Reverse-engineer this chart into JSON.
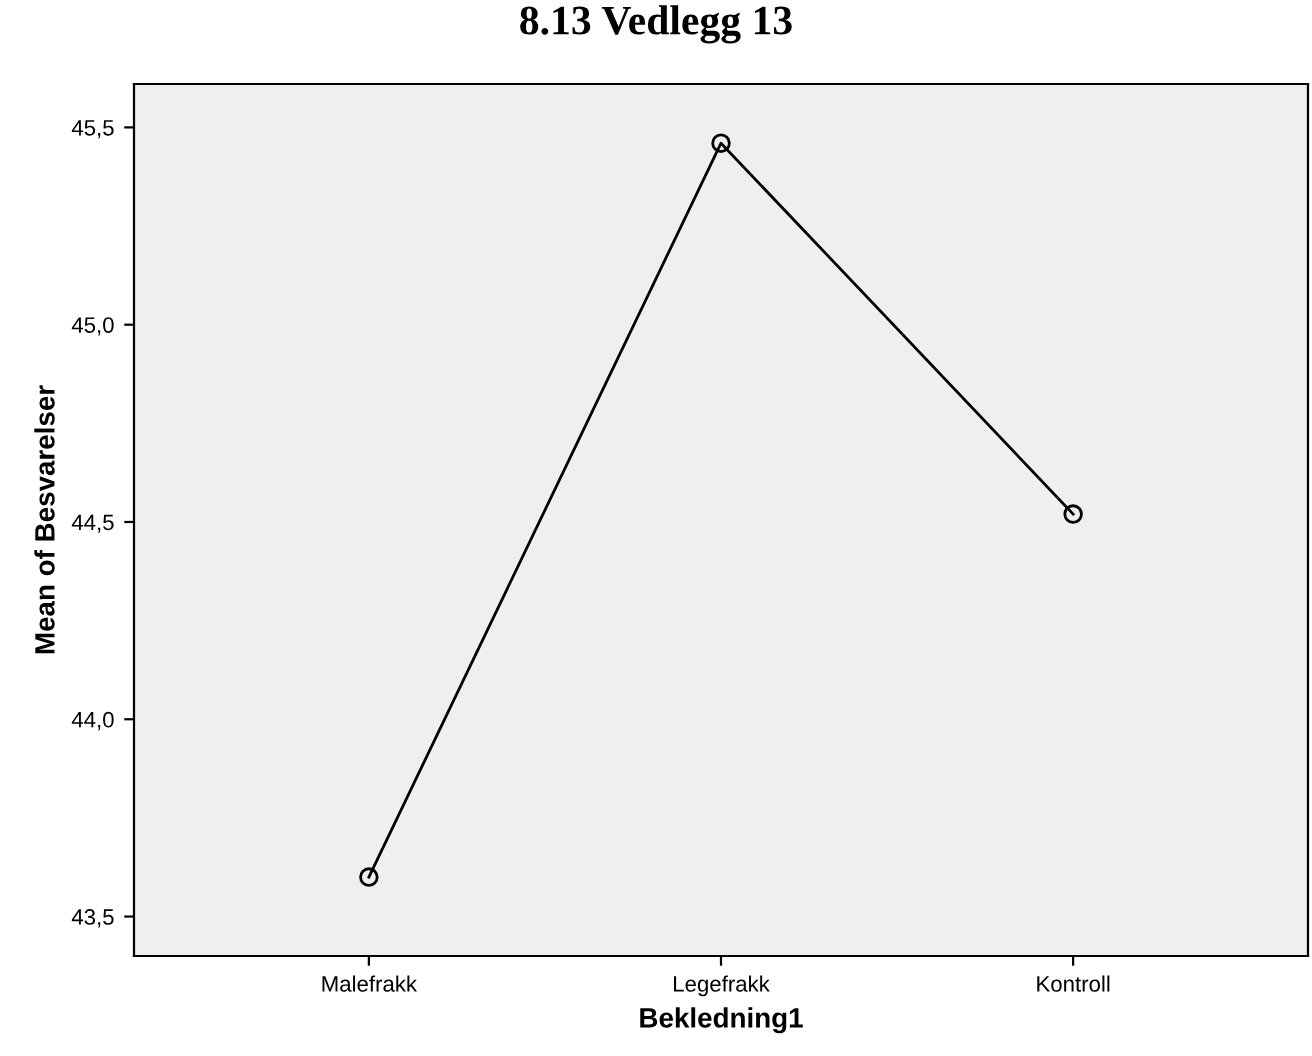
{
  "chart_data": {
    "type": "line",
    "title": "8.13 Vedlegg 13",
    "xlabel": "Bekledning1",
    "ylabel": "Mean of Besvarelser",
    "categories": [
      "Malefrakk",
      "Legefrakk",
      "Kontroll"
    ],
    "series": [
      {
        "color": "#000000",
        "values": [
          43.6,
          45.46,
          44.52
        ]
      }
    ],
    "ylim": [
      43.4,
      45.61
    ],
    "yticks": [
      {
        "value": 43.5,
        "label": "43,5"
      },
      {
        "value": 44.0,
        "label": "44,0"
      },
      {
        "value": 44.5,
        "label": "44,5"
      },
      {
        "value": 45.0,
        "label": "45,0"
      },
      {
        "value": 45.5,
        "label": "45,5"
      }
    ],
    "grid": false,
    "legend": false,
    "marker": "circle",
    "line_style": "solid"
  }
}
